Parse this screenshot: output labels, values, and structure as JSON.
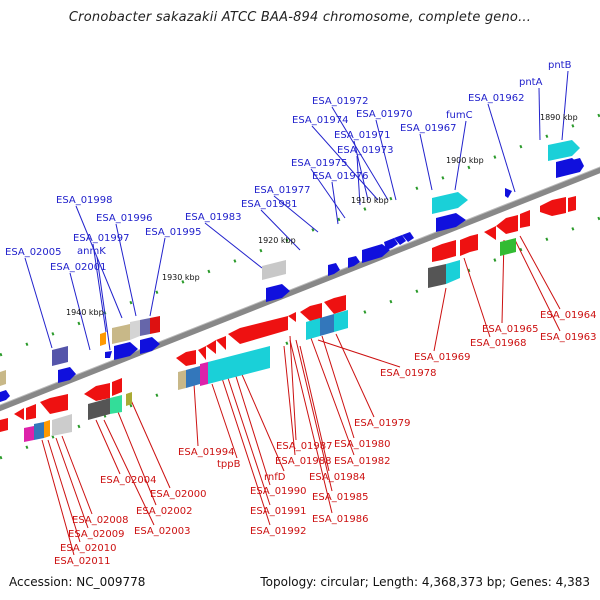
{
  "header": {
    "title": "Cronobacter sakazakii ATCC BAA-894 chromosome, complete geno..."
  },
  "footer": {
    "accession": "Accession: NC_009778",
    "topology": "Topology: circular; Length: 4,368,373 bp; Genes: 4,383"
  },
  "colors": {
    "top_label": "#2222cc",
    "bottom_label": "#cc1111",
    "backbone": "#888888"
  },
  "kbp_ticks": [
    {
      "label": "1890 kbp"
    },
    {
      "label": "1900 kbp"
    },
    {
      "label": "1910 kbp"
    },
    {
      "label": "1920 kbp"
    },
    {
      "label": "1930 kbp"
    },
    {
      "label": "1940 kbp"
    }
  ],
  "top_labels": [
    "pntB",
    "pntA",
    "ESA_01962",
    "fumC",
    "ESA_01967",
    "ESA_01970",
    "ESA_01972",
    "ESA_01974",
    "ESA_01971",
    "ESA_01973",
    "ESA_01975",
    "ESA_01976",
    "ESA_01977",
    "ESA_01981",
    "ESA_01983",
    "ESA_01998",
    "ESA_01996",
    "ESA_01997",
    "ESA_01995",
    "anmK",
    "ESA_02005",
    "ESA_02001"
  ],
  "bottom_labels": [
    "ESA_01964",
    "ESA_01963",
    "ESA_01965",
    "ESA_01968",
    "ESA_01969",
    "ESA_01978",
    "ESA_01979",
    "ESA_01980",
    "ESA_01987",
    "ESA_01982",
    "ESA_01988",
    "ESA_01984",
    "ESA_01994",
    "tppB",
    "rnfD",
    "ESA_01990",
    "ESA_01985",
    "ESA_01991",
    "ESA_01986",
    "ESA_01992",
    "ESA_02000",
    "ESA_02004",
    "ESA_02002",
    "ESA_02003",
    "ESA_02008",
    "ESA_02009",
    "ESA_02010",
    "ESA_02011"
  ]
}
